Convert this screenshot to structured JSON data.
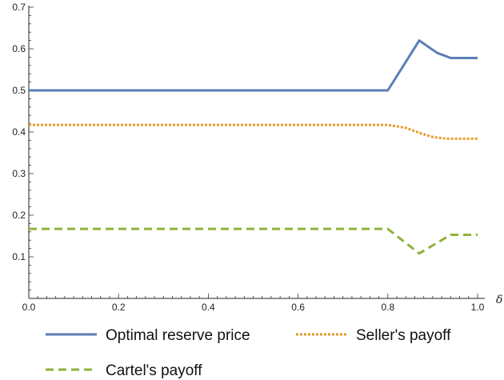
{
  "chart_data": {
    "type": "line",
    "xlabel": "δ",
    "ylabel": "",
    "xlim": [
      0,
      1.0
    ],
    "ylim": [
      0,
      0.7
    ],
    "xticks": [
      "0.0",
      "0.2",
      "0.4",
      "0.6",
      "0.8",
      "1.0"
    ],
    "yticks": [
      "0.1",
      "0.2",
      "0.3",
      "0.4",
      "0.5",
      "0.6",
      "0.7"
    ],
    "grid": false,
    "legend_position": "bottom",
    "series": [
      {
        "name": "Optimal reserve price",
        "color": "#5b7fb5",
        "style": "solid",
        "x": [
          0,
          0.8,
          0.87,
          0.91,
          0.94,
          1.0
        ],
        "y": [
          0.5,
          0.5,
          0.62,
          0.59,
          0.578,
          0.578
        ]
      },
      {
        "name": "Seller's payoff",
        "color": "#e59c2b",
        "style": "dotted",
        "x": [
          0,
          0.8,
          0.84,
          0.87,
          0.9,
          0.93,
          1.0
        ],
        "y": [
          0.417,
          0.417,
          0.41,
          0.398,
          0.388,
          0.384,
          0.384
        ]
      },
      {
        "name": "Cartel's payoff",
        "color": "#8db33c",
        "style": "dashed",
        "x": [
          0,
          0.8,
          0.87,
          0.94,
          1.0
        ],
        "y": [
          0.167,
          0.167,
          0.108,
          0.153,
          0.153
        ]
      }
    ]
  }
}
